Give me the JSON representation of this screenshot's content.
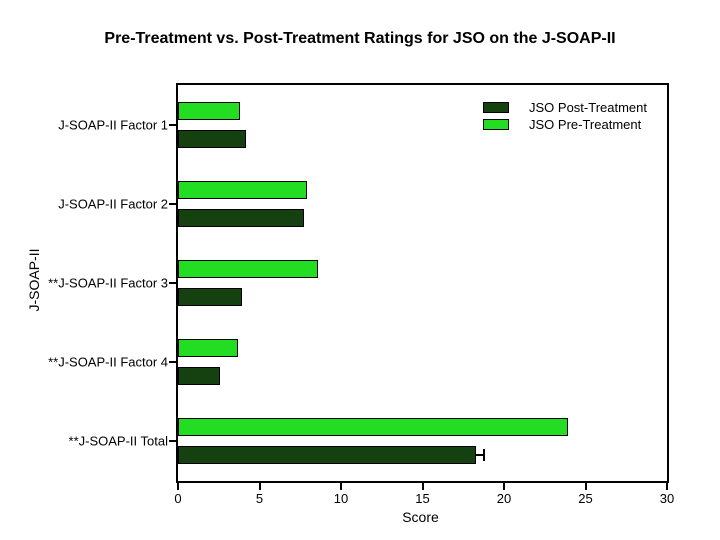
{
  "chart_data": {
    "type": "bar",
    "orientation": "horizontal",
    "title": "Pre-Treatment vs. Post-Treatment Ratings for JSO on the J-SOAP-II",
    "xlabel": "Score",
    "ylabel": "J-SOAP-II",
    "xlim": [
      0,
      30
    ],
    "xticks": [
      0,
      5,
      10,
      15,
      20,
      25,
      30
    ],
    "grid": false,
    "legend_position": "top-right-inside",
    "categories": [
      "J-SOAP-II Factor 1",
      "J-SOAP-II Factor 2",
      "**J-SOAP-II Factor 3",
      "**J-SOAP-II Factor 4",
      "**J-SOAP-II Total"
    ],
    "series": [
      {
        "name": "JSO Post-Treatment",
        "color": "#15400f",
        "values": [
          4.2,
          7.7,
          3.9,
          2.6,
          18.3
        ],
        "errors": [
          0,
          0,
          0,
          0,
          0.4
        ]
      },
      {
        "name": "JSO Pre-Treatment",
        "color": "#22dd22",
        "values": [
          3.8,
          7.9,
          8.6,
          3.7,
          23.9
        ],
        "errors": [
          0,
          0,
          0,
          0,
          0
        ]
      }
    ]
  },
  "colors": {
    "frame": "#000000",
    "background": "#ffffff",
    "text": "#000000"
  }
}
